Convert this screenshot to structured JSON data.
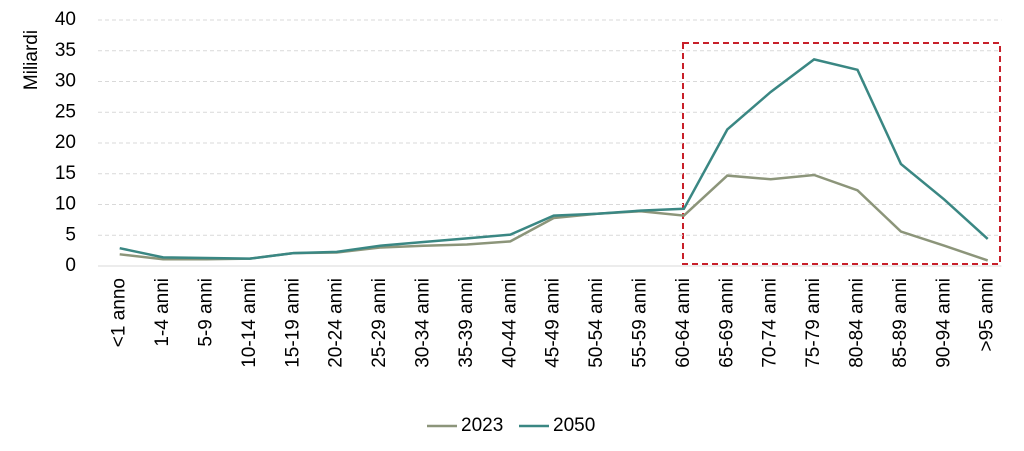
{
  "chart_data": {
    "type": "line",
    "y_label": "Miliardi",
    "categories": [
      "<1 anno",
      "1-4 anni",
      "5-9 anni",
      "10-14 anni",
      "15-19 anni",
      "20-24 anni",
      "25-29 anni",
      "30-34 anni",
      "35-39 anni",
      "40-44 anni",
      "45-49 anni",
      "50-54 anni",
      "55-59 anni",
      "60-64 anni",
      "65-69 anni",
      "70-74 anni",
      "75-79 anni",
      "80-84 anni",
      "85-89 anni",
      "90-94 anni",
      ">95 anni"
    ],
    "series": [
      {
        "name": "2023",
        "color": "#8c957a",
        "values": [
          1.9,
          1.1,
          1.1,
          1.2,
          2.1,
          2.2,
          3.0,
          3.3,
          3.5,
          4.0,
          7.8,
          8.5,
          8.9,
          8.2,
          14.7,
          14.1,
          14.8,
          12.3,
          5.6,
          3.3,
          0.9
        ]
      },
      {
        "name": "2050",
        "color": "#3a8783",
        "values": [
          2.9,
          1.4,
          1.3,
          1.2,
          2.1,
          2.3,
          3.3,
          3.9,
          4.5,
          5.1,
          8.2,
          8.5,
          9.0,
          9.3,
          22.2,
          28.3,
          33.6,
          31.9,
          16.6,
          10.8,
          4.4
        ]
      }
    ],
    "ylim": [
      0,
      40
    ],
    "yticks": [
      0,
      5,
      10,
      15,
      20,
      25,
      30,
      35,
      40
    ],
    "grid": true
  }
}
